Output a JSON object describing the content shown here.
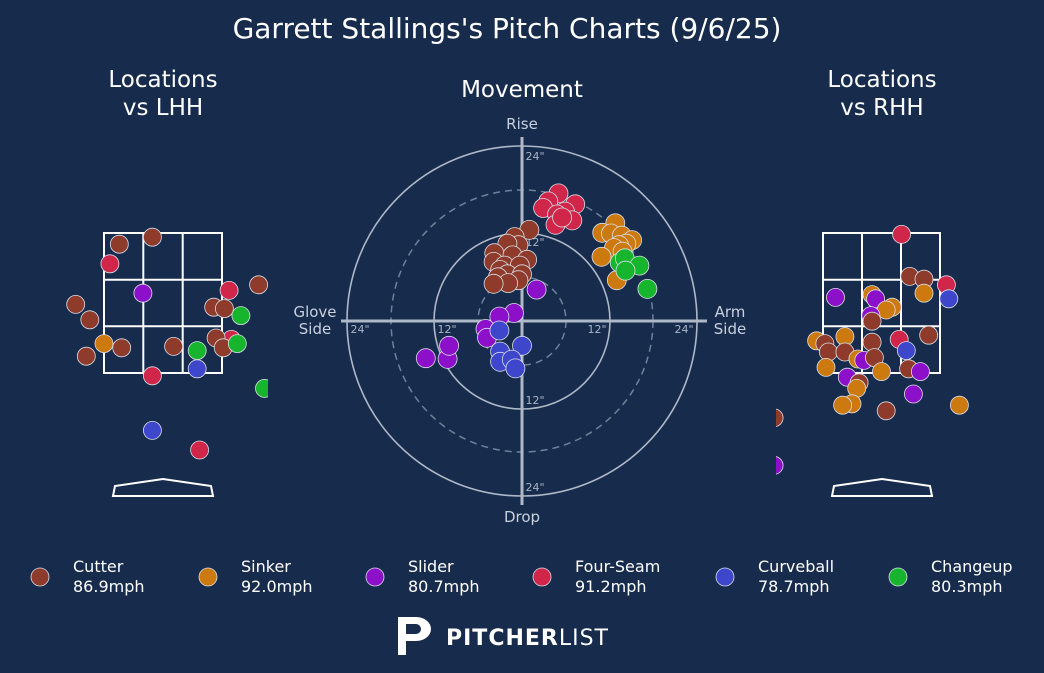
{
  "title": "Garrett Stallings's Pitch Charts (9/6/25)",
  "panels": {
    "lhh_title": [
      "Locations",
      "vs LHH"
    ],
    "movement_title": "Movement",
    "rhh_title": [
      "Locations",
      "vs RHH"
    ]
  },
  "movement_axes": {
    "top": "Rise",
    "bottom": "Drop",
    "left": [
      "Glove",
      "Side"
    ],
    "right": [
      "Arm",
      "Side"
    ],
    "ring_labels": [
      "24\"",
      "12\"",
      "12\"",
      "24\""
    ]
  },
  "colors": {
    "background": "#172b4d",
    "Cutter": "#8e3b2b",
    "Sinker": "#cc7a0f",
    "Slider": "#8c10c9",
    "Four-Seam": "#d0264a",
    "Curveball": "#3e46cc",
    "Changeup": "#17b52e"
  },
  "legend": [
    {
      "pitch": "Cutter",
      "velo": "86.9mph"
    },
    {
      "pitch": "Sinker",
      "velo": "92.0mph"
    },
    {
      "pitch": "Slider",
      "velo": "80.7mph"
    },
    {
      "pitch": "Four-Seam",
      "velo": "91.2mph"
    },
    {
      "pitch": "Curveball",
      "velo": "78.7mph"
    },
    {
      "pitch": "Changeup",
      "velo": "80.3mph"
    }
  ],
  "brand": {
    "bold": "PITCHER",
    "light": "LIST"
  },
  "chart_data": [
    {
      "type": "scatter",
      "title": "Locations vs LHH",
      "x_units": "zone widths from plate center",
      "y_units": "zone heights from bottom of zone",
      "points": [
        {
          "pitch": "Curveball",
          "x": 1.08,
          "y": 1.4
        },
        {
          "pitch": "Cutter",
          "x": -0.37,
          "y": 0.92
        },
        {
          "pitch": "Cutter",
          "x": -0.09,
          "y": 0.97
        },
        {
          "pitch": "Four-Seam",
          "x": -0.45,
          "y": 0.78
        },
        {
          "pitch": "Four-Seam",
          "x": 0.56,
          "y": 0.59
        },
        {
          "pitch": "Cutter",
          "x": 0.81,
          "y": 0.63
        },
        {
          "pitch": "Slider",
          "x": -0.17,
          "y": 0.57
        },
        {
          "pitch": "Cutter",
          "x": -0.74,
          "y": 0.49
        },
        {
          "pitch": "Cutter",
          "x": -0.62,
          "y": 0.38
        },
        {
          "pitch": "Cutter",
          "x": 0.43,
          "y": 0.47
        },
        {
          "pitch": "Cutter",
          "x": 0.52,
          "y": 0.46
        },
        {
          "pitch": "Changeup",
          "x": 0.66,
          "y": 0.41
        },
        {
          "pitch": "Four-Seam",
          "x": 0.58,
          "y": 0.24
        },
        {
          "pitch": "Cutter",
          "x": 0.45,
          "y": 0.25
        },
        {
          "pitch": "Cutter",
          "x": 0.51,
          "y": 0.18
        },
        {
          "pitch": "Changeup",
          "x": 0.63,
          "y": 0.21
        },
        {
          "pitch": "Sinker",
          "x": -0.5,
          "y": 0.21
        },
        {
          "pitch": "Cutter",
          "x": -0.35,
          "y": 0.18
        },
        {
          "pitch": "Cutter",
          "x": 0.09,
          "y": 0.19
        },
        {
          "pitch": "Changeup",
          "x": 0.29,
          "y": 0.16
        },
        {
          "pitch": "Cutter",
          "x": -0.65,
          "y": 0.12
        },
        {
          "pitch": "Curveball",
          "x": 0.29,
          "y": 0.03
        },
        {
          "pitch": "Four-Seam",
          "x": -0.09,
          "y": -0.02
        },
        {
          "pitch": "Changeup",
          "x": 0.86,
          "y": -0.11
        },
        {
          "pitch": "Curveball",
          "x": -0.09,
          "y": -0.41
        },
        {
          "pitch": "Four-Seam",
          "x": 0.31,
          "y": -0.55
        }
      ]
    },
    {
      "type": "scatter",
      "title": "Movement",
      "x_label": "Glove Side / Arm Side",
      "y_label": "Drop / Rise",
      "xlim": [
        -24,
        24
      ],
      "ylim": [
        -24,
        24
      ],
      "units": "inches",
      "rings": [
        6,
        12,
        18,
        24
      ],
      "points": [
        {
          "pitch": "Four-Seam",
          "x": 5.0,
          "y": 17.5
        },
        {
          "pitch": "Four-Seam",
          "x": 3.6,
          "y": 16.4
        },
        {
          "pitch": "Four-Seam",
          "x": 7.3,
          "y": 16.0
        },
        {
          "pitch": "Four-Seam",
          "x": 2.9,
          "y": 15.5
        },
        {
          "pitch": "Four-Seam",
          "x": 5.9,
          "y": 15.0
        },
        {
          "pitch": "Four-Seam",
          "x": 4.8,
          "y": 14.6
        },
        {
          "pitch": "Four-Seam",
          "x": 4.6,
          "y": 13.2
        },
        {
          "pitch": "Four-Seam",
          "x": 6.9,
          "y": 13.8
        },
        {
          "pitch": "Four-Seam",
          "x": 5.5,
          "y": 14.2
        },
        {
          "pitch": "Sinker",
          "x": 12.8,
          "y": 13.4
        },
        {
          "pitch": "Sinker",
          "x": 11.0,
          "y": 12.1
        },
        {
          "pitch": "Sinker",
          "x": 12.2,
          "y": 12.0
        },
        {
          "pitch": "Sinker",
          "x": 13.7,
          "y": 11.7
        },
        {
          "pitch": "Sinker",
          "x": 15.1,
          "y": 11.1
        },
        {
          "pitch": "Sinker",
          "x": 14.3,
          "y": 10.6
        },
        {
          "pitch": "Sinker",
          "x": 13.3,
          "y": 10.4
        },
        {
          "pitch": "Sinker",
          "x": 12.6,
          "y": 10.0
        },
        {
          "pitch": "Sinker",
          "x": 13.8,
          "y": 9.5
        },
        {
          "pitch": "Sinker",
          "x": 10.9,
          "y": 8.8
        },
        {
          "pitch": "Sinker",
          "x": 13.0,
          "y": 5.6
        },
        {
          "pitch": "Changeup",
          "x": 13.4,
          "y": 8.0
        },
        {
          "pitch": "Changeup",
          "x": 14.1,
          "y": 8.6
        },
        {
          "pitch": "Changeup",
          "x": 16.1,
          "y": 7.6
        },
        {
          "pitch": "Changeup",
          "x": 14.2,
          "y": 6.9
        },
        {
          "pitch": "Changeup",
          "x": 17.2,
          "y": 4.4
        },
        {
          "pitch": "Cutter",
          "x": 1.0,
          "y": 12.5
        },
        {
          "pitch": "Cutter",
          "x": -1.0,
          "y": 11.5
        },
        {
          "pitch": "Cutter",
          "x": -0.5,
          "y": 10.4
        },
        {
          "pitch": "Cutter",
          "x": -2.0,
          "y": 10.6
        },
        {
          "pitch": "Cutter",
          "x": -3.8,
          "y": 9.3
        },
        {
          "pitch": "Cutter",
          "x": -1.3,
          "y": 9.0
        },
        {
          "pitch": "Cutter",
          "x": 0.7,
          "y": 8.4
        },
        {
          "pitch": "Cutter",
          "x": -3.9,
          "y": 8.1
        },
        {
          "pitch": "Cutter",
          "x": -2.4,
          "y": 7.6
        },
        {
          "pitch": "Cutter",
          "x": -0.3,
          "y": 7.6
        },
        {
          "pitch": "Cutter",
          "x": -3.0,
          "y": 7.0
        },
        {
          "pitch": "Cutter",
          "x": -2.0,
          "y": 6.4
        },
        {
          "pitch": "Cutter",
          "x": 0.0,
          "y": 6.4
        },
        {
          "pitch": "Cutter",
          "x": -3.3,
          "y": 6.0
        },
        {
          "pitch": "Cutter",
          "x": -0.5,
          "y": 5.6
        },
        {
          "pitch": "Cutter",
          "x": -1.9,
          "y": 5.2
        },
        {
          "pitch": "Cutter",
          "x": -3.9,
          "y": 5.1
        },
        {
          "pitch": "Slider",
          "x": 2.0,
          "y": 4.3
        },
        {
          "pitch": "Slider",
          "x": -1.1,
          "y": 1.1
        },
        {
          "pitch": "Slider",
          "x": -3.1,
          "y": 0.6
        },
        {
          "pitch": "Slider",
          "x": -5.0,
          "y": -1.1
        },
        {
          "pitch": "Slider",
          "x": -4.8,
          "y": -2.3
        },
        {
          "pitch": "Slider",
          "x": -10.2,
          "y": -5.2
        },
        {
          "pitch": "Slider",
          "x": -10.0,
          "y": -3.4
        },
        {
          "pitch": "Slider",
          "x": -13.2,
          "y": -5.1
        },
        {
          "pitch": "Curveball",
          "x": -3.1,
          "y": -1.3
        },
        {
          "pitch": "Curveball",
          "x": 0.0,
          "y": -3.4
        },
        {
          "pitch": "Curveball",
          "x": -3.0,
          "y": -4.2
        },
        {
          "pitch": "Curveball",
          "x": -3.0,
          "y": -5.6
        },
        {
          "pitch": "Curveball",
          "x": -1.4,
          "y": -5.3
        },
        {
          "pitch": "Curveball",
          "x": -0.9,
          "y": -6.5
        }
      ]
    },
    {
      "type": "scatter",
      "title": "Locations vs RHH",
      "x_units": "zone widths from plate center",
      "y_units": "zone heights from bottom of zone",
      "points": [
        {
          "pitch": "Four-Seam",
          "x": 0.17,
          "y": 0.99
        },
        {
          "pitch": "Cutter",
          "x": 0.24,
          "y": 0.69
        },
        {
          "pitch": "Cutter",
          "x": 0.36,
          "y": 0.67
        },
        {
          "pitch": "Four-Seam",
          "x": 0.55,
          "y": 0.63
        },
        {
          "pitch": "Curveball",
          "x": 0.57,
          "y": 0.53
        },
        {
          "pitch": "Slider",
          "x": -0.39,
          "y": 0.54
        },
        {
          "pitch": "Sinker",
          "x": 0.36,
          "y": 0.57
        },
        {
          "pitch": "Sinker",
          "x": -0.08,
          "y": 0.56
        },
        {
          "pitch": "Slider",
          "x": -0.05,
          "y": 0.53
        },
        {
          "pitch": "Sinker",
          "x": 0.09,
          "y": 0.47
        },
        {
          "pitch": "Sinker",
          "x": 0.04,
          "y": 0.45
        },
        {
          "pitch": "Slider",
          "x": -0.09,
          "y": 0.41
        },
        {
          "pitch": "Cutter",
          "x": -0.08,
          "y": 0.37
        },
        {
          "pitch": "Cutter",
          "x": 0.4,
          "y": 0.27
        },
        {
          "pitch": "Sinker",
          "x": -0.31,
          "y": 0.26
        },
        {
          "pitch": "Sinker",
          "x": -0.55,
          "y": 0.23
        },
        {
          "pitch": "Cutter",
          "x": -0.48,
          "y": 0.21
        },
        {
          "pitch": "Four-Seam",
          "x": 0.15,
          "y": 0.24
        },
        {
          "pitch": "Cutter",
          "x": -0.08,
          "y": 0.22
        },
        {
          "pitch": "Cutter",
          "x": -0.45,
          "y": 0.15
        },
        {
          "pitch": "Cutter",
          "x": -0.31,
          "y": 0.15
        },
        {
          "pitch": "Curveball",
          "x": 0.21,
          "y": 0.16
        },
        {
          "pitch": "Sinker",
          "x": -0.2,
          "y": 0.1
        },
        {
          "pitch": "Slider",
          "x": -0.15,
          "y": 0.09
        },
        {
          "pitch": "Cutter",
          "x": -0.06,
          "y": 0.11
        },
        {
          "pitch": "Sinker",
          "x": -0.47,
          "y": 0.04
        },
        {
          "pitch": "Sinker",
          "x": 0.0,
          "y": 0.01
        },
        {
          "pitch": "Cutter",
          "x": 0.23,
          "y": 0.03
        },
        {
          "pitch": "Slider",
          "x": 0.33,
          "y": 0.01
        },
        {
          "pitch": "Slider",
          "x": -0.29,
          "y": -0.03
        },
        {
          "pitch": "Cutter",
          "x": -0.19,
          "y": -0.07
        },
        {
          "pitch": "Sinker",
          "x": -0.21,
          "y": -0.11
        },
        {
          "pitch": "Slider",
          "x": 0.27,
          "y": -0.15
        },
        {
          "pitch": "Sinker",
          "x": -0.25,
          "y": -0.22
        },
        {
          "pitch": "Sinker",
          "x": -0.33,
          "y": -0.23
        },
        {
          "pitch": "Cutter",
          "x": 0.04,
          "y": -0.27
        },
        {
          "pitch": "Sinker",
          "x": 0.66,
          "y": -0.23
        },
        {
          "pitch": "Cutter",
          "x": -0.91,
          "y": -0.32
        },
        {
          "pitch": "Slider",
          "x": -0.91,
          "y": -0.66
        }
      ]
    }
  ]
}
